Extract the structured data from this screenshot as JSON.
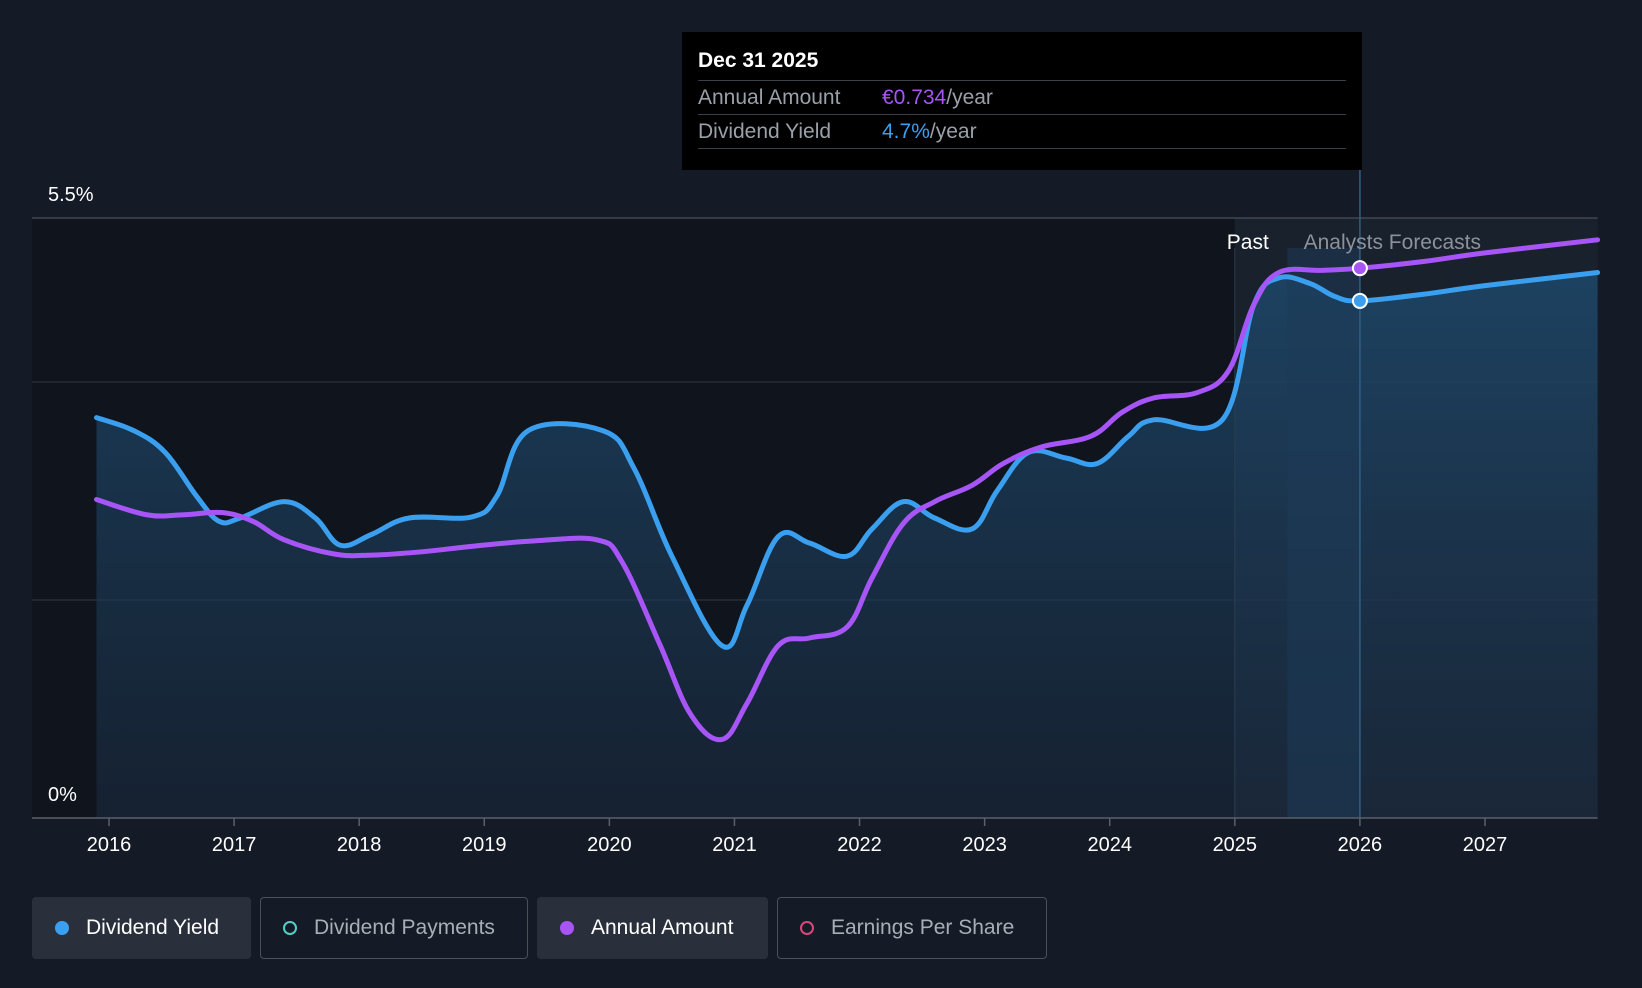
{
  "tooltip": {
    "date": "Dec 31 2025",
    "rows": [
      {
        "label": "Annual Amount",
        "value": "€0.734",
        "unit": "/year",
        "color": "#a855f7"
      },
      {
        "label": "Dividend Yield",
        "value": "4.7%",
        "unit": "/year",
        "color": "#3b9ff0"
      }
    ]
  },
  "region_labels": {
    "past": "Past",
    "forecast": "Analysts Forecasts"
  },
  "legend": [
    {
      "label": "Dividend Yield",
      "color": "#3b9ff0",
      "filled": true,
      "active": true
    },
    {
      "label": "Dividend Payments",
      "color": "#4fd1c5",
      "filled": false,
      "active": false
    },
    {
      "label": "Annual Amount",
      "color": "#a855f7",
      "filled": true,
      "active": true
    },
    {
      "label": "Earnings Per Share",
      "color": "#d9467c",
      "filled": false,
      "active": false
    }
  ],
  "chart_data": {
    "type": "line",
    "x_ticks": [
      "2016",
      "2017",
      "2018",
      "2019",
      "2020",
      "2021",
      "2022",
      "2023",
      "2024",
      "2025",
      "2026",
      "2027"
    ],
    "y_tick_labels": [
      "5.5%",
      "0%"
    ],
    "ylim": [
      0,
      5.5
    ],
    "xlim": [
      2015.9,
      2027.9
    ],
    "grid": true,
    "past_forecast_boundary": 2025.0,
    "highlight_x": 2026.0,
    "series": [
      {
        "name": "Dividend Yield",
        "unit": "%",
        "color": "#3b9ff0",
        "area": true,
        "points": [
          [
            2015.9,
            3.67
          ],
          [
            2016.2,
            3.55
          ],
          [
            2016.45,
            3.35
          ],
          [
            2016.7,
            2.95
          ],
          [
            2016.88,
            2.72
          ],
          [
            2017.05,
            2.75
          ],
          [
            2017.4,
            2.9
          ],
          [
            2017.65,
            2.75
          ],
          [
            2017.85,
            2.5
          ],
          [
            2018.1,
            2.6
          ],
          [
            2018.4,
            2.75
          ],
          [
            2018.9,
            2.76
          ],
          [
            2019.1,
            2.95
          ],
          [
            2019.35,
            3.55
          ],
          [
            2019.95,
            3.55
          ],
          [
            2020.2,
            3.2
          ],
          [
            2020.5,
            2.4
          ],
          [
            2020.9,
            1.58
          ],
          [
            2021.1,
            1.95
          ],
          [
            2021.35,
            2.58
          ],
          [
            2021.6,
            2.52
          ],
          [
            2021.9,
            2.4
          ],
          [
            2022.1,
            2.65
          ],
          [
            2022.35,
            2.9
          ],
          [
            2022.6,
            2.75
          ],
          [
            2022.9,
            2.65
          ],
          [
            2023.1,
            3.0
          ],
          [
            2023.35,
            3.35
          ],
          [
            2023.65,
            3.3
          ],
          [
            2023.9,
            3.25
          ],
          [
            2024.15,
            3.5
          ],
          [
            2024.35,
            3.65
          ],
          [
            2024.9,
            3.65
          ],
          [
            2025.15,
            4.7
          ],
          [
            2025.35,
            4.95
          ],
          [
            2025.6,
            4.9
          ],
          [
            2025.8,
            4.78
          ],
          [
            2026.0,
            4.74
          ],
          [
            2026.5,
            4.8
          ],
          [
            2027.0,
            4.88
          ],
          [
            2027.9,
            5.0
          ]
        ]
      },
      {
        "name": "Annual Amount",
        "unit": "€",
        "color": "#a855f7",
        "area": false,
        "points": [
          [
            2015.9,
            2.92
          ],
          [
            2016.3,
            2.78
          ],
          [
            2016.6,
            2.78
          ],
          [
            2016.9,
            2.8
          ],
          [
            2017.15,
            2.72
          ],
          [
            2017.4,
            2.55
          ],
          [
            2017.8,
            2.42
          ],
          [
            2018.1,
            2.41
          ],
          [
            2018.5,
            2.44
          ],
          [
            2018.9,
            2.49
          ],
          [
            2019.4,
            2.54
          ],
          [
            2019.9,
            2.55
          ],
          [
            2020.1,
            2.35
          ],
          [
            2020.4,
            1.6
          ],
          [
            2020.65,
            0.95
          ],
          [
            2020.9,
            0.72
          ],
          [
            2021.1,
            1.05
          ],
          [
            2021.35,
            1.58
          ],
          [
            2021.6,
            1.65
          ],
          [
            2021.9,
            1.75
          ],
          [
            2022.1,
            2.2
          ],
          [
            2022.35,
            2.7
          ],
          [
            2022.6,
            2.9
          ],
          [
            2022.9,
            3.05
          ],
          [
            2023.15,
            3.25
          ],
          [
            2023.45,
            3.4
          ],
          [
            2023.85,
            3.5
          ],
          [
            2024.1,
            3.72
          ],
          [
            2024.35,
            3.85
          ],
          [
            2024.7,
            3.9
          ],
          [
            2024.95,
            4.1
          ],
          [
            2025.15,
            4.7
          ],
          [
            2025.35,
            5.0
          ],
          [
            2025.7,
            5.02
          ],
          [
            2026.0,
            5.04
          ],
          [
            2026.5,
            5.1
          ],
          [
            2027.0,
            5.18
          ],
          [
            2027.9,
            5.3
          ]
        ]
      }
    ]
  }
}
